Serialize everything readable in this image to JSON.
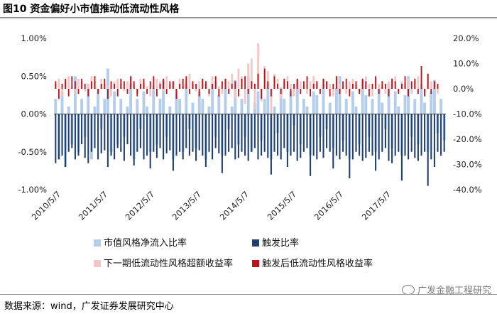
{
  "title": "图10 资金偏好小市值推动低流动性风格",
  "source": "数据来源：wind，广发证券发展研究中心",
  "watermark": "广发金融工程研究",
  "watermark_icon": "wechat-icon",
  "chart_data": {
    "type": "bar",
    "x_tick_labels": [
      "2010/5/7",
      "2011/5/7",
      "2012/5/7",
      "2013/5/7",
      "2014/5/7",
      "2015/5/7",
      "2016/5/7",
      "2017/5/7"
    ],
    "y_left": {
      "range": [
        -1.0,
        1.0
      ],
      "ticks": [
        "1.00%",
        "0.50%",
        "0.00%",
        "-0.50%",
        "-1.00%"
      ]
    },
    "y_right": {
      "range": [
        -40,
        20
      ],
      "ticks": [
        "20.0%",
        "10.0%",
        "0.0%",
        "-10.0%",
        "-20.0%",
        "-30.0%",
        "-40.0%"
      ]
    },
    "grid": false,
    "legend_position": "bottom",
    "series": [
      {
        "name": "市值风格净流入比率",
        "axis": "left",
        "color": "#b4cdea",
        "values": [
          0.2,
          -0.6,
          0.3,
          -0.7,
          0.1,
          -0.4,
          0.5,
          -0.5,
          0.2,
          -0.3,
          0.4,
          -0.6,
          0.1,
          0.3,
          -0.2,
          0.2,
          0.6,
          -0.5,
          0.3,
          -0.4,
          0.2,
          -0.3,
          0.1,
          0.4,
          -0.6,
          0.2,
          -0.2,
          0.3,
          0.1,
          -0.5,
          0.35,
          -0.4,
          0.2,
          0.45,
          -0.3,
          0.1,
          -0.6,
          0.3,
          0.2,
          -0.5,
          0.4,
          -0.2,
          0.15,
          -0.45,
          0.3,
          0.2,
          -0.6,
          0.1,
          0.4,
          -0.3,
          0.25,
          -0.55,
          0.35,
          -0.2,
          0.1,
          0.45,
          -0.4,
          0.2,
          -0.3,
          0.5,
          -0.5,
          0.15,
          0.3,
          -0.35,
          0.2,
          0.4,
          -0.6,
          0.1,
          -0.25,
          0.35,
          0.2,
          -0.5,
          0.3,
          -0.15,
          0.45,
          -0.4,
          0.2,
          0.1,
          -0.55,
          0.3,
          0.25,
          -0.3,
          0.4,
          -0.2,
          0.15,
          -0.45,
          0.35,
          0.5,
          -0.35,
          0.2,
          -0.6,
          0.3,
          0.1,
          -0.4,
          0.45,
          0.25,
          -0.3,
          0.2,
          -0.5,
          0.35,
          0.15,
          -0.2,
          0.4,
          -0.45,
          0.3,
          0.1,
          -0.55,
          0.25,
          0.5,
          -0.3,
          0.2,
          -0.4,
          0.35,
          0.15,
          -0.5,
          0.3,
          0.45,
          -0.25,
          0.2,
          -0.35
        ]
      },
      {
        "name": "触发比率",
        "axis": "left",
        "color": "#1f3f6e",
        "values": [
          -0.65,
          -0.6,
          -0.55,
          -0.7,
          -0.5,
          -0.45,
          -0.6,
          -0.55,
          -0.4,
          -0.58,
          -0.65,
          -0.5,
          -0.45,
          -0.6,
          -0.52,
          -0.48,
          -0.7,
          -0.55,
          -0.6,
          -0.45,
          -0.5,
          -0.62,
          -0.4,
          -0.55,
          -0.68,
          -0.5,
          -0.45,
          -0.6,
          -0.55,
          -0.72,
          -0.5,
          -0.58,
          -0.45,
          -0.6,
          -0.52,
          -0.48,
          -0.75,
          -0.55,
          -0.5,
          -0.6,
          -0.45,
          -0.55,
          -0.5,
          -0.62,
          -0.48,
          -0.55,
          -0.7,
          -0.5,
          -0.6,
          -0.45,
          -0.52,
          -0.78,
          -0.55,
          -0.5,
          -0.45,
          -0.6,
          -0.58,
          -0.5,
          -0.55,
          -0.62,
          -0.5,
          -0.45,
          -0.6,
          -0.55,
          -0.5,
          -0.58,
          -0.8,
          -0.5,
          -0.55,
          -0.6,
          -0.45,
          -0.7,
          -0.55,
          -0.5,
          -0.62,
          -0.58,
          -0.5,
          -0.45,
          -0.82,
          -0.55,
          -0.6,
          -0.5,
          -0.58,
          -0.45,
          -0.5,
          -0.72,
          -0.55,
          -0.6,
          -0.5,
          -0.55,
          -0.85,
          -0.6,
          -0.5,
          -0.55,
          -0.62,
          -0.58,
          -0.5,
          -0.55,
          -0.75,
          -0.6,
          -0.5,
          -0.45,
          -0.62,
          -0.65,
          -0.55,
          -0.5,
          -0.88,
          -0.55,
          -0.6,
          -0.5,
          -0.58,
          -0.62,
          -0.55,
          -0.5,
          -0.95,
          -0.6,
          -0.7,
          -0.5,
          -0.55,
          -0.5
        ]
      },
      {
        "name": "下一期低流动性风格超额收益率",
        "axis": "right",
        "color": "#f2c6c6",
        "values": [
          2,
          4,
          -3,
          3,
          5,
          1,
          -2,
          4,
          3,
          -1,
          2,
          5,
          3,
          -2,
          4,
          2,
          1,
          -3,
          3,
          4,
          2,
          -1,
          3,
          5,
          2,
          -2,
          4,
          3,
          1,
          -3,
          2,
          4,
          3,
          -1,
          5,
          2,
          3,
          -2,
          4,
          1,
          3,
          6,
          2,
          -1,
          3,
          4,
          2,
          -3,
          5,
          3,
          1,
          -2,
          4,
          3,
          6,
          -4,
          8,
          5,
          -6,
          10,
          12,
          -8,
          18,
          -5,
          9,
          7,
          -10,
          6,
          4,
          -4,
          3,
          5,
          2,
          -3,
          4,
          3,
          1,
          -2,
          3,
          5,
          2,
          -1,
          4,
          3,
          2,
          -3,
          5,
          2,
          1,
          -2,
          3,
          4,
          2,
          -1,
          3,
          5,
          2,
          -3,
          4,
          2,
          1,
          -2,
          3,
          4,
          5,
          -1,
          3,
          2,
          4,
          -2,
          3,
          5,
          2,
          -1,
          6,
          3,
          2,
          -2
        ]
      },
      {
        "name": "触发后低流动性风格收益率",
        "axis": "right",
        "color": "#c0131b",
        "values": [
          3,
          -4,
          2,
          4,
          -3,
          5,
          3,
          -2,
          4,
          2,
          -3,
          3,
          5,
          -2,
          2,
          4,
          -4,
          3,
          2,
          -3,
          4,
          3,
          -2,
          5,
          3,
          -3,
          2,
          4,
          -2,
          3,
          5,
          -3,
          2,
          4,
          -2,
          3,
          3,
          -4,
          2,
          4,
          5,
          -2,
          3,
          2,
          -3,
          4,
          3,
          -2,
          2,
          5,
          -3,
          3,
          4,
          -2,
          2,
          3,
          -3,
          4,
          5,
          -2,
          3,
          2,
          6,
          -4,
          8,
          3,
          -3,
          5,
          2,
          -2,
          4,
          3,
          -3,
          2,
          4,
          -2,
          3,
          5,
          -3,
          2,
          3,
          -2,
          4,
          3,
          -3,
          2,
          5,
          -2,
          3,
          4,
          -3,
          2,
          3,
          -2,
          4,
          3,
          -3,
          2,
          5,
          -2,
          3,
          2,
          -3,
          4,
          3,
          -2,
          2,
          5,
          -3,
          3,
          4,
          -2,
          9,
          -3,
          6,
          -2,
          3,
          2
        ]
      }
    ]
  }
}
